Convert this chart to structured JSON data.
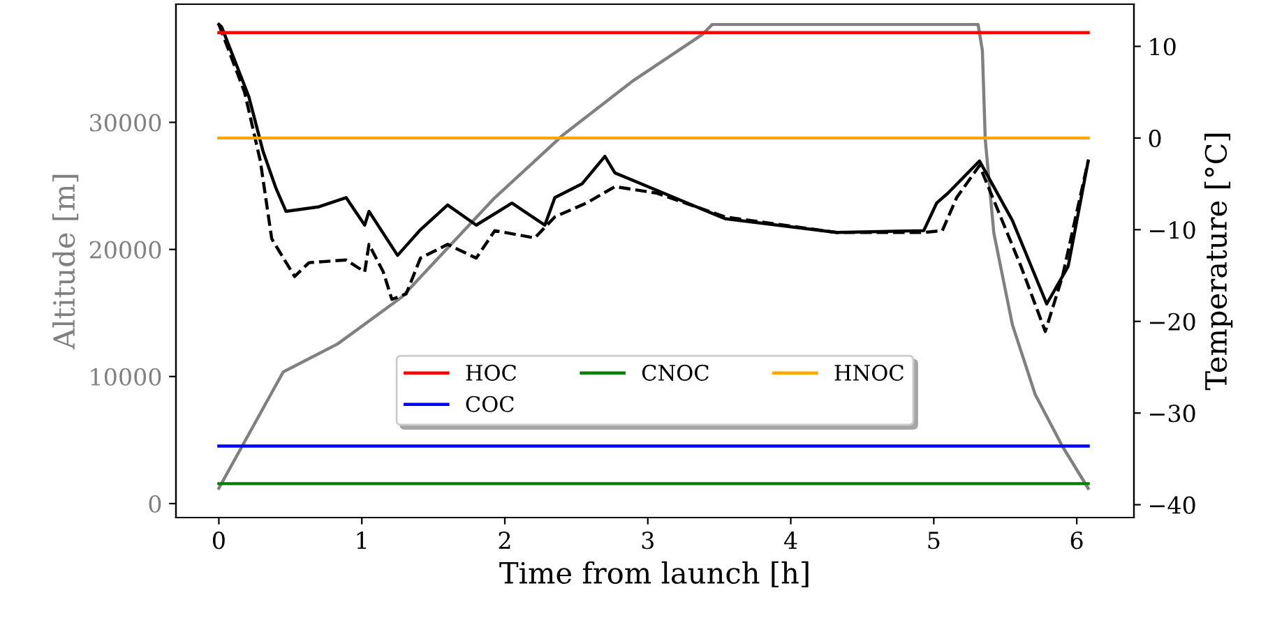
{
  "chart_data": {
    "type": "line",
    "xlabel": "Time from launch [h]",
    "ylabel": "Altitude [m]",
    "y2label": "Temperature [°C]",
    "xlim": [
      -0.3,
      6.4
    ],
    "xticks": [
      0,
      1,
      2,
      3,
      4,
      5,
      6
    ],
    "ylim": [
      -1100,
      39300
    ],
    "yticks": [
      0,
      10000,
      20000,
      30000
    ],
    "y2lim": [
      -41.4,
      14.6
    ],
    "y2ticks": [
      -40,
      -30,
      -20,
      -10,
      0,
      10
    ],
    "grid": false,
    "legend": "bottom",
    "marker": "none",
    "series": [
      {
        "color": "#808080",
        "axis": "y",
        "line_style": "solid",
        "x": [
          0,
          0.45,
          0.83,
          1.28,
          1.92,
          2.41,
          2.9,
          3.38,
          3.45,
          5.31,
          5.34,
          5.36,
          5.42,
          5.55,
          5.71,
          5.9,
          6.08
        ],
        "values": [
          1200,
          10360,
          12560,
          16260,
          23960,
          29040,
          33300,
          36900,
          37700,
          37700,
          35660,
          28680,
          21300,
          14070,
          8570,
          4500,
          1200
        ]
      },
      {
        "color": "#000000",
        "axis": "y2",
        "line_style": "solid",
        "x": [
          0,
          0.02,
          0.21,
          0.31,
          0.4,
          0.47,
          0.7,
          0.89,
          1.02,
          1.05,
          1.25,
          1.41,
          1.6,
          1.8,
          2.05,
          2.28,
          2.35,
          2.54,
          2.7,
          2.77,
          3.54,
          4.32,
          4.93,
          5.02,
          5.1,
          5.32,
          5.55,
          5.79,
          5.94,
          6.08
        ],
        "values": [
          12.4,
          12.1,
          4.5,
          -1.5,
          -5.5,
          -8,
          -7.5,
          -6.5,
          -9.5,
          -8,
          -12.8,
          -10,
          -7.3,
          -9.5,
          -7.1,
          -9.5,
          -6.5,
          -5,
          -2,
          -3.8,
          -8.8,
          -10.3,
          -10.1,
          -7.1,
          -6,
          -2.5,
          -9,
          -18.1,
          -14,
          -2.5
        ]
      },
      {
        "color": "#000000",
        "axis": "y2",
        "line_style": "dashed",
        "x": [
          0,
          0.18,
          0.29,
          0.37,
          0.53,
          0.63,
          0.89,
          1.02,
          1.05,
          1.15,
          1.21,
          1.31,
          1.41,
          1.6,
          1.8,
          1.93,
          2.21,
          2.35,
          2.57,
          2.77,
          3.06,
          3.54,
          4.32,
          4.93,
          5.06,
          5.16,
          5.32,
          5.61,
          5.78,
          5.9,
          6.08
        ],
        "values": [
          12.4,
          5,
          -2.5,
          -11,
          -15.1,
          -13.6,
          -13.3,
          -14.6,
          -11.6,
          -14.6,
          -17.6,
          -17,
          -13.1,
          -11.6,
          -13.1,
          -10.1,
          -10.9,
          -8.6,
          -7.1,
          -5.3,
          -6,
          -8.6,
          -10.3,
          -10.3,
          -10.1,
          -6.5,
          -3,
          -14,
          -21.1,
          -15.1,
          -2.5
        ]
      },
      {
        "name": "HOC",
        "color": "#ff0000",
        "axis": "y2",
        "line_style": "solid",
        "x": [
          0,
          6.08
        ],
        "values": [
          11.5,
          11.5
        ]
      },
      {
        "name": "COC",
        "color": "#0000ff",
        "axis": "y2",
        "line_style": "solid",
        "x": [
          0,
          6.08
        ],
        "values": [
          -33.6,
          -33.6
        ]
      },
      {
        "name": "CNOC",
        "color": "#008000",
        "axis": "y2",
        "line_style": "solid",
        "x": [
          0,
          6.08
        ],
        "values": [
          -37.7,
          -37.7
        ]
      },
      {
        "name": "HNOC",
        "color": "#ffa500",
        "axis": "y2",
        "line_style": "solid",
        "x": [
          0,
          6.08
        ],
        "values": [
          0,
          0
        ]
      }
    ]
  }
}
